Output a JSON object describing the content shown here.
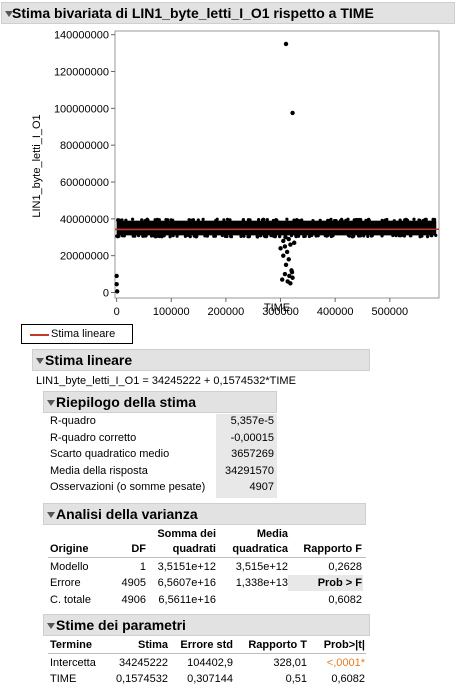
{
  "title": "Stima bivariata di LIN1_byte_letti_I_O1 rispetto a TIME",
  "chart_data": {
    "type": "scatter",
    "xlabel": "TIME",
    "ylabel": "LIN1_byte_letti_I_O1",
    "xlim": [
      -3000,
      590000
    ],
    "ylim": [
      -3000000,
      142000000
    ],
    "xticks": [
      0,
      100000,
      200000,
      300000,
      400000,
      500000
    ],
    "xtick_labels": [
      "0",
      "100000",
      "200000",
      "300000",
      "400000",
      "500000"
    ],
    "yticks": [
      0,
      20000000,
      40000000,
      60000000,
      80000000,
      100000000,
      120000000,
      140000000
    ],
    "ytick_labels": [
      "0",
      "20000000",
      "40000000",
      "60000000",
      "80000000",
      "100000000",
      "120000000",
      "140000000"
    ],
    "fit": {
      "intercept": 34245222,
      "slope": 0.1574532,
      "color": "#c0392b"
    },
    "band": {
      "x_start": 0,
      "x_end": 585000,
      "y_low": 31000000,
      "y_high": 39000000,
      "color": "#000000"
    },
    "outliers": [
      [
        0,
        9000000
      ],
      [
        0,
        4500000
      ],
      [
        1000,
        600000
      ],
      [
        310000,
        135000000
      ],
      [
        322000,
        97500000
      ],
      [
        305000,
        28000000
      ],
      [
        308000,
        25000000
      ],
      [
        312000,
        22000000
      ],
      [
        318000,
        26000000
      ],
      [
        300000,
        24000000
      ],
      [
        305000,
        20000000
      ],
      [
        310000,
        15000000
      ],
      [
        315000,
        18000000
      ],
      [
        320000,
        12000000
      ],
      [
        322000,
        8000000
      ],
      [
        308000,
        10000000
      ],
      [
        313000,
        6000000
      ],
      [
        318000,
        5000000
      ],
      [
        303000,
        7000000
      ],
      [
        316000,
        9000000
      ],
      [
        321000,
        11000000
      ],
      [
        309000,
        30000000
      ],
      [
        315000,
        29000000
      ],
      [
        325000,
        27000000
      ]
    ]
  },
  "legend": {
    "label": "Stima lineare",
    "color": "#c0392b"
  },
  "fit_section": {
    "title": "Stima lineare",
    "equation": "LIN1_byte_letti_I_O1 = 34245222 + 0,1574532*TIME"
  },
  "summary": {
    "title": "Riepilogo della stima",
    "rows": [
      {
        "label": "R-quadro",
        "value": "5,357e-5"
      },
      {
        "label": "R-quadro corretto",
        "value": "-0,00015"
      },
      {
        "label": "Scarto quadratico medio",
        "value": "3657269"
      },
      {
        "label": "Media della risposta",
        "value": "34291570"
      },
      {
        "label": "Osservazioni (o somme pesate)",
        "value": "4907"
      }
    ]
  },
  "anova": {
    "title": "Analisi della varianza",
    "headers": {
      "origine": "Origine",
      "df": "DF",
      "ss_1": "Somma dei",
      "ss_2": "quadrati",
      "ms_1": "Media",
      "ms_2": "quadratica",
      "f": "Rapporto F",
      "probf": "Prob > F"
    },
    "rows": [
      {
        "origine": "Modello",
        "df": "1",
        "ss": "3,5151e+12",
        "ms": "3,515e+12",
        "f": "0,2628"
      },
      {
        "origine": "Errore",
        "df": "4905",
        "ss": "6,5607e+16",
        "ms": "1,338e+13",
        "f": ""
      },
      {
        "origine": "C. totale",
        "df": "4906",
        "ss": "6,5611e+16",
        "ms": "",
        "f": "0,6082"
      }
    ]
  },
  "params": {
    "title": "Stime dei parametri",
    "headers": {
      "term": "Termine",
      "est": "Stima",
      "se": "Errore std",
      "t": "Rapporto T",
      "p": "Prob>|t|"
    },
    "rows": [
      {
        "term": "Intercetta",
        "est": "34245222",
        "se": "104402,9",
        "t": "328,01",
        "p": "<,0001*"
      },
      {
        "term": "TIME",
        "est": "0,1574532",
        "se": "0,307144",
        "t": "0,51",
        "p": "0,6082"
      }
    ]
  }
}
